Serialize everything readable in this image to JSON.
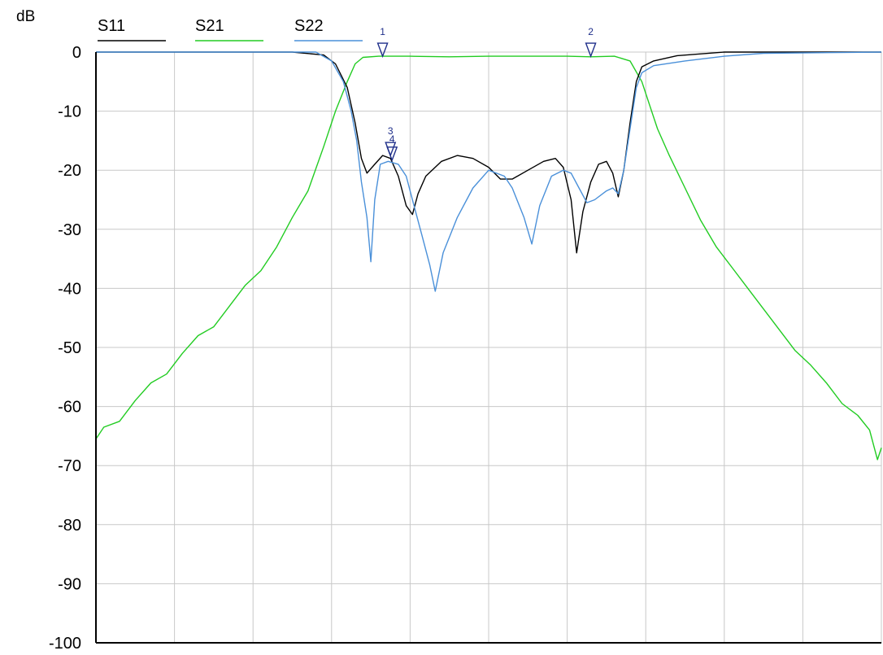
{
  "chart_data": {
    "type": "line",
    "ylabel": "dB",
    "ylim": [
      -100,
      0
    ],
    "xlim": [
      0,
      10
    ],
    "yticks": [
      "0",
      "-10",
      "-20",
      "-30",
      "-40",
      "-50",
      "-60",
      "-70",
      "-80",
      "-90",
      "-100"
    ],
    "grid": true,
    "legend_position": "top",
    "series": [
      {
        "name": "S11",
        "color": "#000000",
        "points": [
          [
            0,
            0
          ],
          [
            2.5,
            0
          ],
          [
            2.9,
            -0.5
          ],
          [
            3.05,
            -2
          ],
          [
            3.2,
            -6
          ],
          [
            3.3,
            -12
          ],
          [
            3.38,
            -18
          ],
          [
            3.45,
            -20.5
          ],
          [
            3.55,
            -19
          ],
          [
            3.65,
            -17.5
          ],
          [
            3.75,
            -18
          ],
          [
            3.85,
            -21
          ],
          [
            3.95,
            -26
          ],
          [
            4.03,
            -27.5
          ],
          [
            4.1,
            -24
          ],
          [
            4.2,
            -21
          ],
          [
            4.4,
            -18.5
          ],
          [
            4.6,
            -17.5
          ],
          [
            4.8,
            -18
          ],
          [
            5.0,
            -19.5
          ],
          [
            5.15,
            -21.5
          ],
          [
            5.3,
            -21.5
          ],
          [
            5.5,
            -20
          ],
          [
            5.7,
            -18.5
          ],
          [
            5.85,
            -18
          ],
          [
            5.95,
            -19.5
          ],
          [
            6.05,
            -25
          ],
          [
            6.12,
            -34
          ],
          [
            6.2,
            -27
          ],
          [
            6.3,
            -22
          ],
          [
            6.4,
            -19
          ],
          [
            6.5,
            -18.5
          ],
          [
            6.58,
            -20.5
          ],
          [
            6.65,
            -24.5
          ],
          [
            6.72,
            -20
          ],
          [
            6.8,
            -12
          ],
          [
            6.88,
            -5
          ],
          [
            6.95,
            -2.5
          ],
          [
            7.1,
            -1.5
          ],
          [
            7.4,
            -0.6
          ],
          [
            8.0,
            0
          ],
          [
            10,
            0
          ]
        ]
      },
      {
        "name": "S21",
        "color": "#22cc22",
        "points": [
          [
            0,
            -65.5
          ],
          [
            0.1,
            -63.5
          ],
          [
            0.3,
            -62.5
          ],
          [
            0.5,
            -59
          ],
          [
            0.7,
            -56
          ],
          [
            0.9,
            -54.5
          ],
          [
            1.1,
            -51
          ],
          [
            1.3,
            -48
          ],
          [
            1.5,
            -46.5
          ],
          [
            1.7,
            -43
          ],
          [
            1.9,
            -39.5
          ],
          [
            2.1,
            -37
          ],
          [
            2.3,
            -33
          ],
          [
            2.5,
            -28
          ],
          [
            2.7,
            -23.5
          ],
          [
            2.9,
            -16
          ],
          [
            3.05,
            -10
          ],
          [
            3.2,
            -5
          ],
          [
            3.3,
            -2
          ],
          [
            3.4,
            -0.9
          ],
          [
            3.6,
            -0.7
          ],
          [
            4.0,
            -0.7
          ],
          [
            4.5,
            -0.8
          ],
          [
            5.0,
            -0.7
          ],
          [
            5.5,
            -0.7
          ],
          [
            6.0,
            -0.7
          ],
          [
            6.3,
            -0.8
          ],
          [
            6.6,
            -0.7
          ],
          [
            6.8,
            -1.5
          ],
          [
            6.95,
            -5
          ],
          [
            7.05,
            -9
          ],
          [
            7.15,
            -13
          ],
          [
            7.3,
            -17.5
          ],
          [
            7.5,
            -23
          ],
          [
            7.7,
            -28.5
          ],
          [
            7.9,
            -33
          ],
          [
            8.1,
            -36.5
          ],
          [
            8.3,
            -40
          ],
          [
            8.5,
            -43.5
          ],
          [
            8.7,
            -47
          ],
          [
            8.9,
            -50.5
          ],
          [
            9.1,
            -53
          ],
          [
            9.3,
            -56
          ],
          [
            9.5,
            -59.5
          ],
          [
            9.7,
            -61.5
          ],
          [
            9.85,
            -64
          ],
          [
            9.95,
            -69
          ],
          [
            10,
            -67
          ]
        ]
      },
      {
        "name": "S22",
        "color": "#4a90d9",
        "points": [
          [
            0,
            0
          ],
          [
            2.8,
            0
          ],
          [
            3.0,
            -1.5
          ],
          [
            3.15,
            -5
          ],
          [
            3.25,
            -10
          ],
          [
            3.32,
            -15
          ],
          [
            3.38,
            -22
          ],
          [
            3.45,
            -28
          ],
          [
            3.5,
            -35.5
          ],
          [
            3.55,
            -25
          ],
          [
            3.62,
            -19
          ],
          [
            3.72,
            -18.5
          ],
          [
            3.85,
            -19
          ],
          [
            3.95,
            -21
          ],
          [
            4.05,
            -26
          ],
          [
            4.15,
            -31
          ],
          [
            4.25,
            -36
          ],
          [
            4.32,
            -40.5
          ],
          [
            4.42,
            -34
          ],
          [
            4.6,
            -28
          ],
          [
            4.8,
            -23
          ],
          [
            5.0,
            -20
          ],
          [
            5.2,
            -21
          ],
          [
            5.3,
            -23
          ],
          [
            5.45,
            -28
          ],
          [
            5.55,
            -32.5
          ],
          [
            5.65,
            -26
          ],
          [
            5.8,
            -21
          ],
          [
            5.95,
            -20
          ],
          [
            6.05,
            -20.5
          ],
          [
            6.15,
            -23
          ],
          [
            6.25,
            -25.5
          ],
          [
            6.35,
            -25
          ],
          [
            6.5,
            -23.5
          ],
          [
            6.58,
            -23
          ],
          [
            6.65,
            -24
          ],
          [
            6.72,
            -20
          ],
          [
            6.8,
            -13
          ],
          [
            6.88,
            -6
          ],
          [
            6.95,
            -3.5
          ],
          [
            7.1,
            -2.3
          ],
          [
            7.5,
            -1.5
          ],
          [
            8.0,
            -0.7
          ],
          [
            8.5,
            -0.2
          ],
          [
            10,
            0
          ]
        ]
      }
    ],
    "markers": [
      {
        "label": "1",
        "x": 3.65,
        "y": -0.7
      },
      {
        "label": "2",
        "x": 6.3,
        "y": -0.7
      },
      {
        "label": "3",
        "x": 3.75,
        "y": -17.5
      },
      {
        "label": "4",
        "x": 3.77,
        "y": -18.3
      }
    ]
  }
}
